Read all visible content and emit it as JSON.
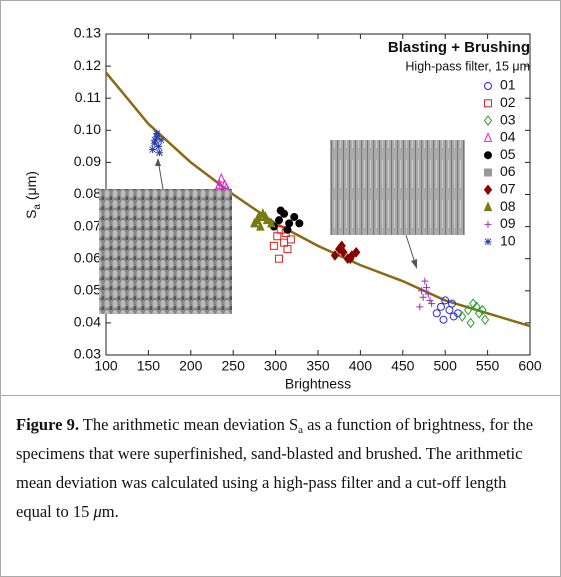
{
  "chart_data": {
    "type": "scatter",
    "legend_title": "Blasting + Brushing",
    "legend_subtitle": "High-pass filter, 15 μm",
    "xlabel": "Brightness",
    "ylabel": [
      "S",
      "a",
      " (μm)"
    ],
    "xlim": [
      100,
      600
    ],
    "ylim": [
      0.03,
      0.13
    ],
    "xticks": [
      100,
      150,
      200,
      250,
      300,
      350,
      400,
      450,
      500,
      550,
      600
    ],
    "yticks": [
      0.03,
      0.04,
      0.05,
      0.06,
      0.07,
      0.08,
      0.09,
      {
        "value": 0.1,
        "label": "0.10"
      },
      0.11,
      0.12,
      0.13
    ],
    "legend": "upper right",
    "curve": {
      "color": "#8a6a10",
      "x": [
        100,
        150,
        200,
        250,
        300,
        350,
        400,
        450,
        500,
        550,
        600
      ],
      "y": [
        0.118,
        0.102,
        0.09,
        0.08,
        0.071,
        0.064,
        0.058,
        0.053,
        0.047,
        0.043,
        0.039
      ]
    },
    "series": [
      {
        "name": "01",
        "color": "#2b2bd9",
        "marker": "circle",
        "x": [
          490,
          495,
          500,
          505,
          510,
          515,
          498,
          508
        ],
        "y": [
          0.043,
          0.045,
          0.047,
          0.044,
          0.042,
          0.043,
          0.041,
          0.046
        ]
      },
      {
        "name": "02",
        "color": "#e0231f",
        "marker": "square",
        "x": [
          298,
          302,
          306,
          310,
          314,
          318,
          304,
          312
        ],
        "y": [
          0.064,
          0.067,
          0.069,
          0.065,
          0.063,
          0.066,
          0.06,
          0.068
        ]
      },
      {
        "name": "03",
        "color": "#2aa02a",
        "marker": "diamond",
        "x": [
          520,
          527,
          533,
          540,
          547,
          530,
          537,
          544
        ],
        "y": [
          0.042,
          0.044,
          0.046,
          0.043,
          0.041,
          0.04,
          0.045,
          0.044
        ]
      },
      {
        "name": "04",
        "color": "#e020e0",
        "marker": "triangle",
        "x": [
          228,
          232,
          236,
          240,
          244,
          234,
          238,
          242
        ],
        "y": [
          0.08,
          0.082,
          0.085,
          0.083,
          0.081,
          0.083,
          0.08,
          0.082
        ]
      },
      {
        "name": "05",
        "color": "#000000",
        "marker": "dot",
        "x": [
          298,
          304,
          310,
          316,
          322,
          328,
          306,
          314
        ],
        "y": [
          0.07,
          0.072,
          0.074,
          0.071,
          0.073,
          0.071,
          0.075,
          0.069
        ]
      },
      {
        "name": "06",
        "color": "#999999",
        "marker": "square-filled",
        "x": [
          226,
          230,
          234,
          238,
          242,
          232,
          240,
          236
        ],
        "y": [
          0.078,
          0.079,
          0.078,
          0.079,
          0.078,
          0.08,
          0.08,
          0.077
        ]
      },
      {
        "name": "07",
        "color": "#8b0000",
        "marker": "diamond-filled",
        "x": [
          370,
          375,
          380,
          385,
          390,
          395,
          378,
          388
        ],
        "y": [
          0.061,
          0.063,
          0.062,
          0.06,
          0.061,
          0.062,
          0.064,
          0.06
        ]
      },
      {
        "name": "08",
        "color": "#7a7a10",
        "marker": "triangle-filled",
        "x": [
          275,
          280,
          285,
          290,
          295,
          282,
          288,
          278
        ],
        "y": [
          0.071,
          0.073,
          0.074,
          0.072,
          0.071,
          0.07,
          0.073,
          0.072
        ]
      },
      {
        "name": "09",
        "color": "#9b2fb0",
        "marker": "plus",
        "x": [
          470,
          474,
          478,
          482,
          476,
          480,
          472,
          484
        ],
        "y": [
          0.045,
          0.048,
          0.051,
          0.047,
          0.053,
          0.049,
          0.05,
          0.046
        ]
      },
      {
        "name": "10",
        "color": "#2a3ea8",
        "marker": "star",
        "x": [
          155,
          158,
          160,
          162,
          165,
          157,
          163,
          160
        ],
        "y": [
          0.094,
          0.097,
          0.099,
          0.095,
          0.097,
          0.096,
          0.093,
          0.098
        ]
      }
    ]
  },
  "caption": {
    "label": "Figure 9.",
    "text": [
      "The arithmetic mean deviation S",
      "a",
      " as a function of brightness, for the specimens that were superfinished, sand-blasted and brushed. The arithmetic mean deviation was calculated using a high-pass filter and a cut-off length equal to 15 ",
      "μ",
      "m."
    ]
  }
}
